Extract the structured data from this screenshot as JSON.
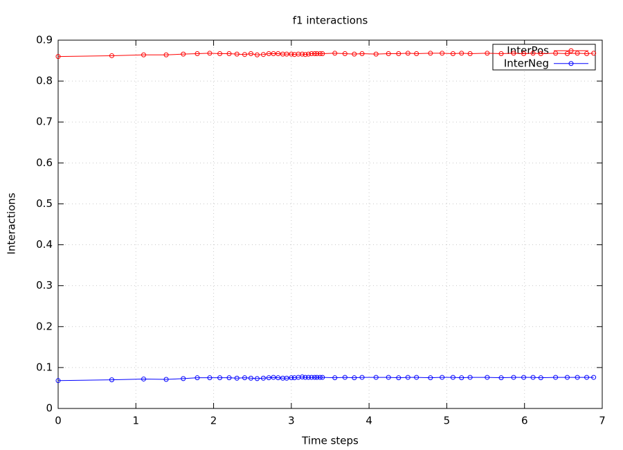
{
  "chart_data": {
    "type": "line",
    "title": "f1 interactions",
    "xlabel": "Time steps",
    "ylabel": "Interactions",
    "xlim": [
      0,
      7
    ],
    "xticks": [
      0,
      1,
      2,
      3,
      4,
      5,
      6,
      7
    ],
    "ylim": [
      0,
      0.9
    ],
    "yticks": [
      0,
      0.1,
      0.2,
      0.3,
      0.4,
      0.5,
      0.6,
      0.7,
      0.8,
      0.9
    ],
    "grid": true,
    "legend": "top-right",
    "x": [
      0,
      0.69,
      1.1,
      1.39,
      1.61,
      1.79,
      1.95,
      2.08,
      2.2,
      2.3,
      2.4,
      2.48,
      2.56,
      2.64,
      2.71,
      2.77,
      2.83,
      2.89,
      2.94,
      3.0,
      3.04,
      3.09,
      3.14,
      3.18,
      3.22,
      3.26,
      3.3,
      3.33,
      3.37,
      3.4,
      3.56,
      3.69,
      3.81,
      3.91,
      4.09,
      4.25,
      4.38,
      4.5,
      4.61,
      4.79,
      4.94,
      5.08,
      5.19,
      5.3,
      5.52,
      5.7,
      5.86,
      5.99,
      6.11,
      6.21,
      6.4,
      6.55,
      6.68,
      6.8,
      6.89
    ],
    "series": [
      {
        "name": "InterPos",
        "color": "#ff0000",
        "values": [
          0.86,
          0.862,
          0.864,
          0.864,
          0.866,
          0.867,
          0.868,
          0.867,
          0.867,
          0.866,
          0.865,
          0.867,
          0.864,
          0.865,
          0.867,
          0.867,
          0.867,
          0.866,
          0.866,
          0.866,
          0.865,
          0.866,
          0.866,
          0.865,
          0.866,
          0.867,
          0.867,
          0.867,
          0.867,
          0.867,
          0.868,
          0.867,
          0.866,
          0.867,
          0.866,
          0.867,
          0.867,
          0.868,
          0.867,
          0.868,
          0.868,
          0.867,
          0.868,
          0.867,
          0.868,
          0.867,
          0.868,
          0.867,
          0.868,
          0.867,
          0.868,
          0.867,
          0.868,
          0.867,
          0.868
        ]
      },
      {
        "name": "InterNeg",
        "color": "#0000ff",
        "values": [
          0.068,
          0.07,
          0.072,
          0.071,
          0.073,
          0.075,
          0.075,
          0.075,
          0.075,
          0.074,
          0.075,
          0.074,
          0.073,
          0.074,
          0.075,
          0.076,
          0.075,
          0.074,
          0.074,
          0.075,
          0.075,
          0.076,
          0.077,
          0.076,
          0.076,
          0.076,
          0.076,
          0.076,
          0.076,
          0.076,
          0.075,
          0.076,
          0.075,
          0.076,
          0.076,
          0.076,
          0.075,
          0.076,
          0.076,
          0.075,
          0.076,
          0.076,
          0.075,
          0.076,
          0.076,
          0.075,
          0.076,
          0.076,
          0.076,
          0.075,
          0.076,
          0.076,
          0.076,
          0.076,
          0.076
        ]
      }
    ]
  }
}
